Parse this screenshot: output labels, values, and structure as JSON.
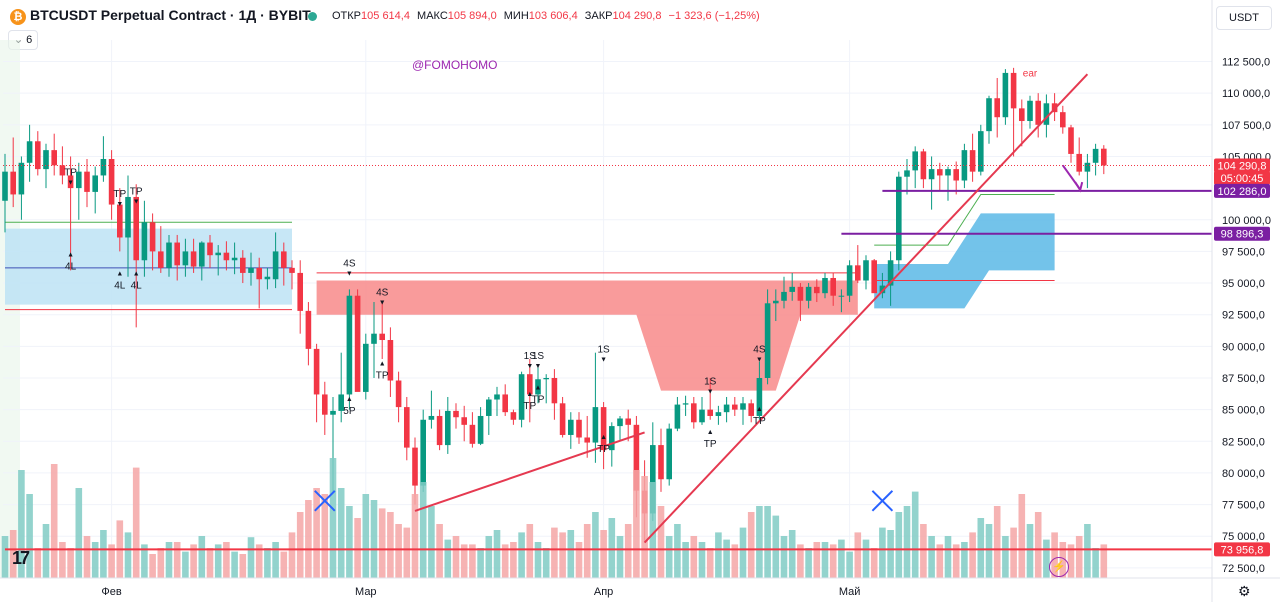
{
  "header": {
    "symbol": "BTCUSDT Perpetual Contract · 1Д · BYBIT",
    "open_label": "ОТКР",
    "open": "105 614,4",
    "high_label": "МАКС",
    "high": "105 894,0",
    "low_label": "МИН",
    "low": "103 606,4",
    "close_label": "ЗАКР",
    "close": "104 290,8",
    "change": "−1 323,6 (−1,25%)",
    "indicators_count": "6",
    "currency": "USDT"
  },
  "watermark": "@FOMOHOMO",
  "logo": "17",
  "chart_data": {
    "type": "candlestick",
    "y_ticks": [
      "112 500,0",
      "110 000,0",
      "107 500,0",
      "105 000,0",
      "100 000,0",
      "97 500,0",
      "95 000,0",
      "92 500,0",
      "90 000,0",
      "87 500,0",
      "85 000,0",
      "82 500,0",
      "80 000,0",
      "77 500,0",
      "75 000,0",
      "72 500,0"
    ],
    "y_tick_values": [
      112500,
      110000,
      107500,
      105000,
      100000,
      97500,
      95000,
      92500,
      90000,
      87500,
      85000,
      82500,
      80000,
      77500,
      75000,
      72500
    ],
    "ylim": [
      71700,
      114200
    ],
    "x_labels": [
      "Фев",
      "Мар",
      "Апр",
      "Май"
    ],
    "x_label_index": [
      13,
      44,
      73,
      103
    ],
    "price_labels": [
      {
        "text": "104 290,8",
        "value": 104290.8,
        "color": "#f23645"
      },
      {
        "text": "05:00:45",
        "value": 103300,
        "color": "#f23645"
      },
      {
        "text": "102 286,0",
        "value": 102286,
        "color": "#7b1fa2"
      },
      {
        "text": "98 896,3",
        "value": 98896.3,
        "color": "#7b1fa2"
      },
      {
        "text": "73 956,8",
        "value": 73956.8,
        "color": "#f23645"
      }
    ],
    "horizontal_lines": [
      {
        "value": 102286,
        "color": "#7b1fa2",
        "from": 107
      },
      {
        "value": 98896.3,
        "color": "#7b1fa2",
        "from": 102
      },
      {
        "value": 73956.8,
        "color": "#f23645",
        "from": 0
      }
    ],
    "trend_lines": [
      {
        "x1": 78,
        "y1": 74500,
        "x2": 132,
        "y2": 111500
      },
      {
        "x1": 50,
        "y1": 77000,
        "x2": 78,
        "y2": 83200
      }
    ],
    "signals": [
      {
        "i": 8,
        "text": "TP",
        "pos": "above",
        "v": 103500
      },
      {
        "i": 14,
        "text": "TP",
        "pos": "above",
        "v": 101800
      },
      {
        "i": 16,
        "text": "TP",
        "pos": "above",
        "v": 102000
      },
      {
        "i": 8,
        "text": "4L",
        "pos": "below",
        "v": 97000
      },
      {
        "i": 14,
        "text": "4L",
        "pos": "below",
        "v": 95500
      },
      {
        "i": 16,
        "text": "4L",
        "pos": "below",
        "v": 95500
      },
      {
        "i": 42,
        "text": "4S",
        "pos": "above",
        "v": 96300
      },
      {
        "i": 46,
        "text": "4S",
        "pos": "above",
        "v": 94000
      },
      {
        "i": 46,
        "text": "TP",
        "pos": "below",
        "v": 88400
      },
      {
        "i": 42,
        "text": "5P",
        "pos": "below",
        "v": 85600
      },
      {
        "i": 64,
        "text": "1S",
        "pos": "above",
        "v": 89000
      },
      {
        "i": 65,
        "text": "1S",
        "pos": "above",
        "v": 89000
      },
      {
        "i": 64,
        "text": "TP",
        "pos": "below",
        "v": 86000
      },
      {
        "i": 65,
        "text": "TP",
        "pos": "below",
        "v": 86500
      },
      {
        "i": 73,
        "text": "1S",
        "pos": "above",
        "v": 89500
      },
      {
        "i": 73,
        "text": "TP",
        "pos": "below",
        "v": 82600
      },
      {
        "i": 86,
        "text": "1S",
        "pos": "above",
        "v": 87000
      },
      {
        "i": 86,
        "text": "TP",
        "pos": "below",
        "v": 83000
      },
      {
        "i": 92,
        "text": "4S",
        "pos": "above",
        "v": 89500
      },
      {
        "i": 92,
        "text": "TP",
        "pos": "below",
        "v": 84800
      },
      {
        "i": 125,
        "text": "ear",
        "pos": "above",
        "v": 111300
      }
    ],
    "ohlc": [
      [
        101500,
        105200,
        99000,
        103800
      ],
      [
        103800,
        106500,
        101000,
        102000
      ],
      [
        102000,
        105000,
        100000,
        104500
      ],
      [
        104500,
        107500,
        103000,
        106200
      ],
      [
        106200,
        107000,
        103500,
        104000
      ],
      [
        104000,
        106000,
        102500,
        105500
      ],
      [
        105500,
        106800,
        103500,
        104300
      ],
      [
        104300,
        105800,
        102800,
        103500
      ],
      [
        103500,
        105000,
        96000,
        102500
      ],
      [
        102500,
        104500,
        100000,
        103800
      ],
      [
        103800,
        104800,
        101000,
        102200
      ],
      [
        102200,
        104200,
        100500,
        103500
      ],
      [
        103500,
        106600,
        103000,
        104800
      ],
      [
        104800,
        105500,
        100000,
        101200
      ],
      [
        101200,
        102500,
        97500,
        98600
      ],
      [
        98600,
        103500,
        95500,
        101800
      ],
      [
        101800,
        102800,
        91500,
        96800
      ],
      [
        96800,
        101500,
        95500,
        99800
      ],
      [
        99800,
        100500,
        96000,
        97500
      ],
      [
        97500,
        99500,
        95800,
        96200
      ],
      [
        96200,
        98800,
        95500,
        98200
      ],
      [
        98200,
        98800,
        95200,
        96400
      ],
      [
        96400,
        98500,
        95500,
        97500
      ],
      [
        97500,
        98500,
        95800,
        96300
      ],
      [
        96300,
        98300,
        95200,
        98200
      ],
      [
        98200,
        98800,
        96200,
        97200
      ],
      [
        97200,
        98000,
        95600,
        97400
      ],
      [
        97400,
        98300,
        96000,
        96800
      ],
      [
        96800,
        98200,
        95700,
        97000
      ],
      [
        97000,
        97600,
        95000,
        95800
      ],
      [
        95800,
        97400,
        94800,
        96200
      ],
      [
        96200,
        97000,
        93000,
        95300
      ],
      [
        95300,
        96200,
        94500,
        95500
      ],
      [
        95300,
        99000,
        94600,
        97500
      ],
      [
        97500,
        98200,
        94800,
        96200
      ],
      [
        96200,
        96800,
        94500,
        95800
      ],
      [
        95800,
        96800,
        91000,
        92800
      ],
      [
        92800,
        93500,
        88500,
        89800
      ],
      [
        89800,
        90200,
        84000,
        86200
      ],
      [
        86200,
        87200,
        83000,
        84600
      ],
      [
        84600,
        86000,
        78500,
        84900
      ],
      [
        84900,
        89500,
        84000,
        86200
      ],
      [
        86200,
        94500,
        85000,
        94000
      ],
      [
        94000,
        94500,
        86500,
        86400
      ],
      [
        86400,
        91000,
        85800,
        90200
      ],
      [
        90200,
        93500,
        87500,
        91000
      ],
      [
        91000,
        93500,
        89000,
        90500
      ],
      [
        90500,
        91500,
        86000,
        87300
      ],
      [
        87300,
        88000,
        84000,
        85200
      ],
      [
        85200,
        86000,
        81000,
        82000
      ],
      [
        82000,
        82800,
        77500,
        79000
      ],
      [
        79000,
        85000,
        78500,
        84200
      ],
      [
        84200,
        86500,
        83500,
        84500
      ],
      [
        84500,
        85000,
        81800,
        82200
      ],
      [
        82200,
        86000,
        81500,
        84900
      ],
      [
        84900,
        85500,
        83500,
        84400
      ],
      [
        84400,
        85300,
        82500,
        83800
      ],
      [
        83800,
        84800,
        82000,
        82300
      ],
      [
        82300,
        85200,
        82200,
        84500
      ],
      [
        84500,
        86000,
        83000,
        85800
      ],
      [
        85800,
        86800,
        84500,
        86200
      ],
      [
        86200,
        87000,
        84500,
        84800
      ],
      [
        84800,
        85000,
        83800,
        84200
      ],
      [
        84200,
        88000,
        83600,
        87800
      ],
      [
        87800,
        89000,
        84000,
        86200
      ],
      [
        86200,
        88600,
        85500,
        87400
      ],
      [
        87400,
        87800,
        85500,
        87500
      ],
      [
        87500,
        88200,
        84200,
        85500
      ],
      [
        85500,
        86000,
        82800,
        83000
      ],
      [
        83000,
        84800,
        81900,
        84200
      ],
      [
        84200,
        84800,
        82300,
        82800
      ],
      [
        82800,
        84500,
        81200,
        82400
      ],
      [
        82400,
        89500,
        80800,
        85200
      ],
      [
        85200,
        85600,
        80300,
        81800
      ],
      [
        81800,
        84000,
        80500,
        83700
      ],
      [
        83700,
        84500,
        82500,
        84300
      ],
      [
        84300,
        85000,
        82500,
        83800
      ],
      [
        83800,
        84500,
        76500,
        78600
      ],
      [
        78600,
        81000,
        74500,
        76800
      ],
      [
        76800,
        84000,
        76200,
        82200
      ],
      [
        82200,
        83500,
        78500,
        79500
      ],
      [
        79500,
        83900,
        79000,
        83500
      ],
      [
        83500,
        86000,
        83300,
        85400
      ],
      [
        85400,
        86100,
        84500,
        85500
      ],
      [
        85500,
        86000,
        83500,
        84000
      ],
      [
        84000,
        86000,
        83800,
        85000
      ],
      [
        85000,
        87500,
        84200,
        84500
      ],
      [
        84500,
        85300,
        83800,
        84800
      ],
      [
        84800,
        86000,
        84000,
        85400
      ],
      [
        85400,
        86000,
        84500,
        85000
      ],
      [
        85000,
        86000,
        83800,
        85500
      ],
      [
        85500,
        85800,
        84000,
        84500
      ],
      [
        84500,
        88800,
        84200,
        87500
      ],
      [
        87500,
        94500,
        87000,
        93400
      ],
      [
        93400,
        94500,
        92000,
        93600
      ],
      [
        93600,
        95500,
        93000,
        94300
      ],
      [
        94300,
        95800,
        93600,
        94700
      ],
      [
        94700,
        95000,
        92000,
        93600
      ],
      [
        93600,
        95000,
        93000,
        94700
      ],
      [
        94700,
        95300,
        93500,
        94200
      ],
      [
        94200,
        95800,
        93800,
        95400
      ],
      [
        95400,
        95800,
        93200,
        94000
      ],
      [
        94000,
        94500,
        92700,
        94000
      ],
      [
        94000,
        96800,
        93500,
        96400
      ],
      [
        96400,
        98000,
        95000,
        95200
      ],
      [
        95200,
        97200,
        94500,
        96800
      ],
      [
        96800,
        96900,
        94500,
        94200
      ],
      [
        94200,
        95800,
        93800,
        94800
      ],
      [
        94800,
        97500,
        93200,
        96800
      ],
      [
        96800,
        103800,
        96000,
        103400
      ],
      [
        103400,
        104800,
        102000,
        103900
      ],
      [
        103900,
        105800,
        102500,
        105400
      ],
      [
        105400,
        105600,
        102500,
        103200
      ],
      [
        103200,
        105000,
        100800,
        104000
      ],
      [
        104000,
        104500,
        102300,
        103500
      ],
      [
        103500,
        104200,
        101500,
        104000
      ],
      [
        104000,
        104600,
        102000,
        103100
      ],
      [
        103100,
        106000,
        102500,
        105500
      ],
      [
        105500,
        106800,
        103000,
        103800
      ],
      [
        103800,
        107500,
        103500,
        107000
      ],
      [
        107000,
        109800,
        106000,
        109600
      ],
      [
        109600,
        111200,
        106500,
        108100
      ],
      [
        108100,
        111900,
        107500,
        111600
      ],
      [
        111600,
        112000,
        105000,
        108800
      ],
      [
        108800,
        109500,
        105800,
        107800
      ],
      [
        107800,
        109800,
        107200,
        109400
      ],
      [
        109400,
        110000,
        106500,
        107500
      ],
      [
        107500,
        109900,
        106500,
        109200
      ],
      [
        109200,
        110000,
        107800,
        108500
      ],
      [
        108500,
        109000,
        106800,
        107300
      ],
      [
        107300,
        107500,
        104500,
        105200
      ],
      [
        105200,
        106500,
        103500,
        103800
      ],
      [
        103800,
        105200,
        102500,
        104500
      ],
      [
        104500,
        106000,
        103500,
        105600
      ],
      [
        105614,
        105894,
        103606,
        104290
      ]
    ],
    "volumes": [
      35,
      40,
      90,
      70,
      25,
      45,
      95,
      30,
      25,
      75,
      35,
      30,
      40,
      28,
      48,
      38,
      92,
      28,
      20,
      25,
      30,
      30,
      22,
      28,
      35,
      25,
      28,
      30,
      22,
      20,
      34,
      28,
      25,
      30,
      22,
      38,
      55,
      65,
      75,
      70,
      100,
      75,
      60,
      50,
      70,
      65,
      58,
      55,
      45,
      42,
      70,
      80,
      60,
      45,
      32,
      35,
      28,
      28,
      25,
      35,
      40,
      28,
      30,
      38,
      45,
      30,
      25,
      42,
      38,
      40,
      30,
      45,
      55,
      40,
      50,
      35,
      45,
      90,
      85,
      80,
      60,
      35,
      45,
      30,
      35,
      30,
      25,
      38,
      32,
      28,
      42,
      55,
      60,
      60,
      52,
      35,
      40,
      28,
      25,
      30,
      30,
      28,
      32,
      22,
      38,
      32,
      25,
      42,
      40,
      55,
      60,
      72,
      45,
      35,
      28,
      35,
      28,
      30,
      38,
      50,
      45,
      60,
      35,
      42,
      70,
      45,
      55,
      32,
      38,
      30,
      28,
      35,
      45,
      25,
      28,
      20
    ]
  }
}
